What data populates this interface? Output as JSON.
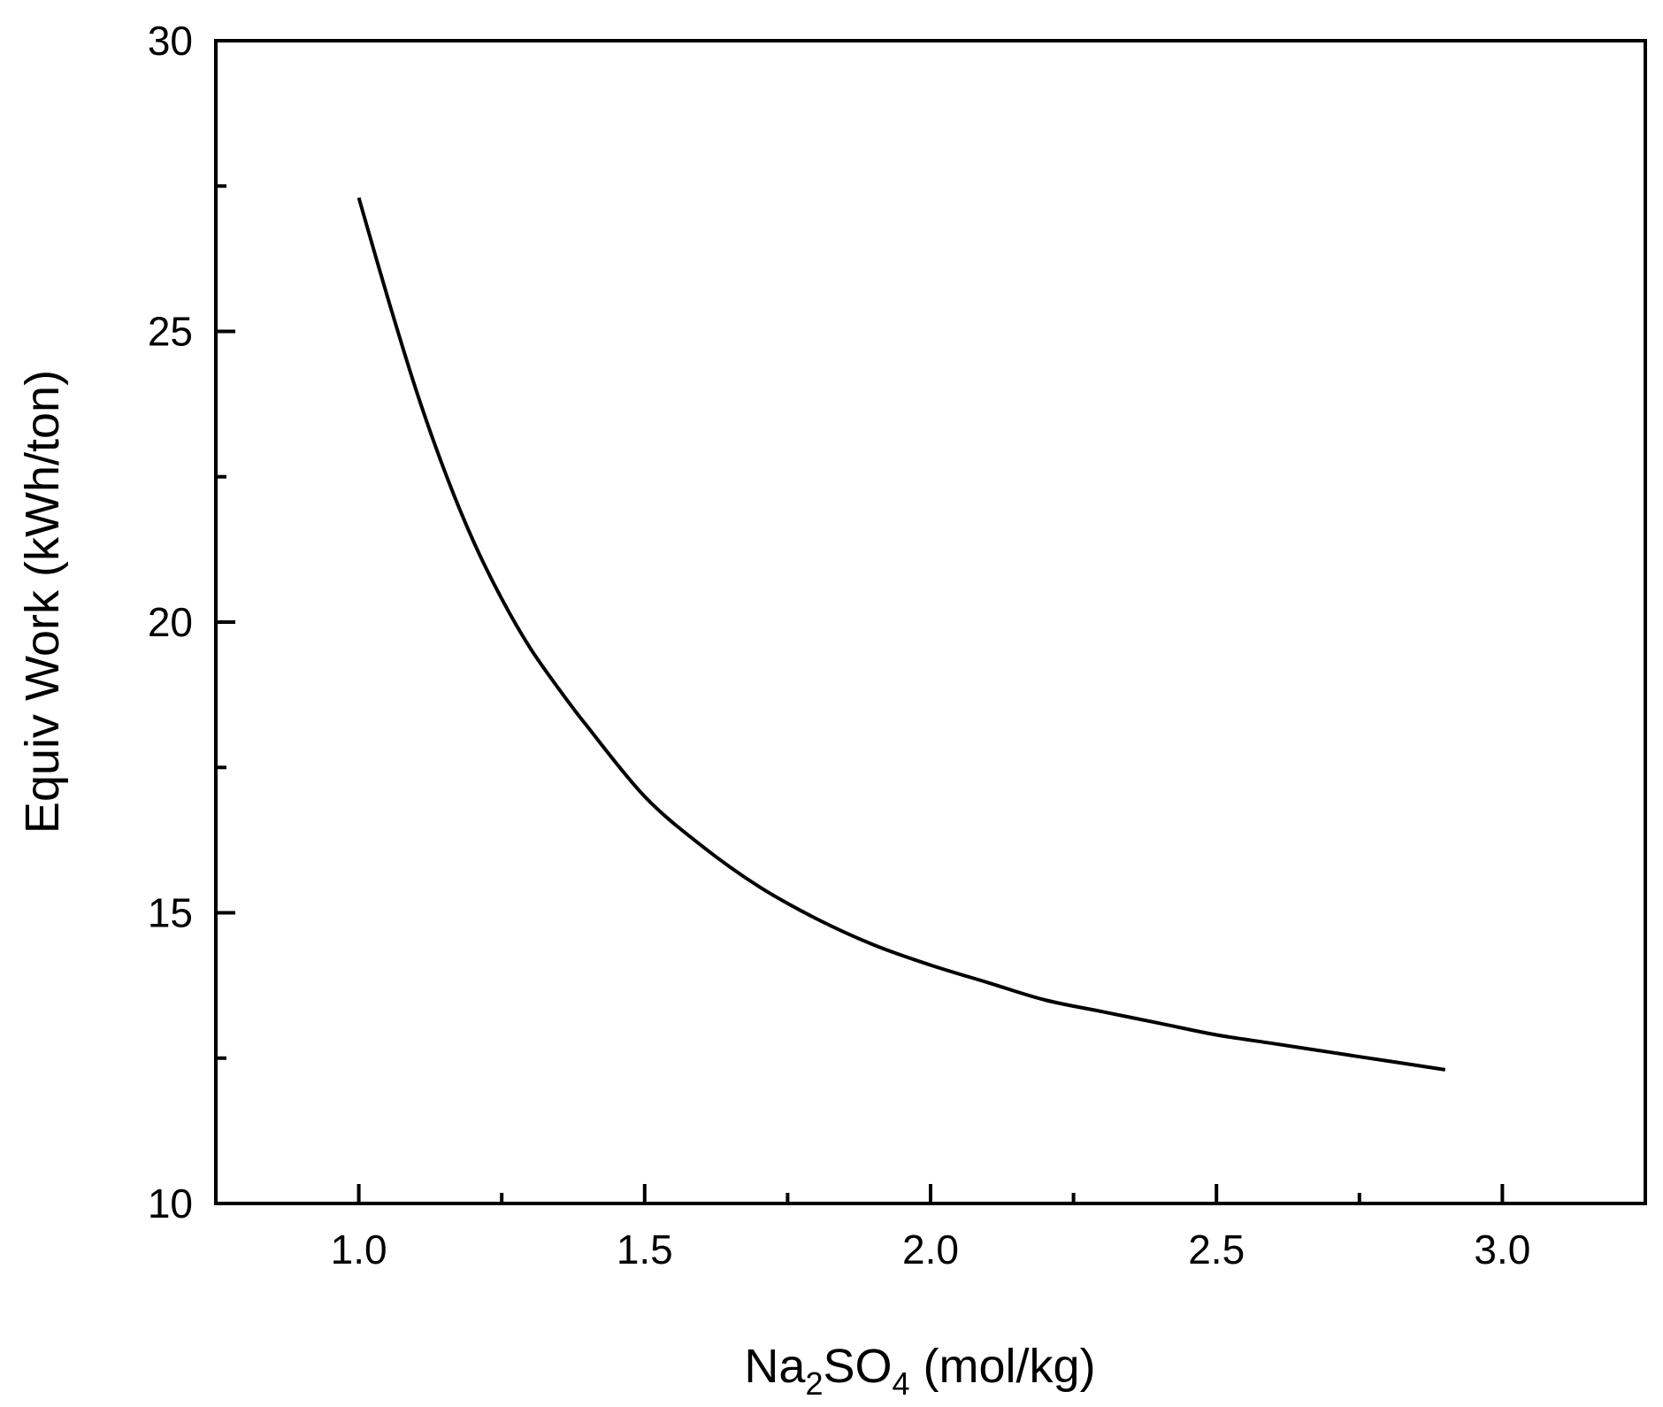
{
  "chart_data": {
    "type": "line",
    "title": "",
    "xlabel": {
      "base1": "Na",
      "sub1": "2",
      "base2": "SO",
      "sub2": "4",
      "rest": " (mol/kg)"
    },
    "ylabel": "Equiv Work (kWh/ton)",
    "xlim": [
      0.75,
      3.25
    ],
    "ylim": [
      10,
      30
    ],
    "xticks": [
      {
        "value": 1.0,
        "label": "1.0"
      },
      {
        "value": 1.5,
        "label": "1.5"
      },
      {
        "value": 2.0,
        "label": "2.0"
      },
      {
        "value": 2.5,
        "label": "2.5"
      },
      {
        "value": 3.0,
        "label": "3.0"
      }
    ],
    "xminor": [
      1.25,
      1.75,
      2.25,
      2.75
    ],
    "yticks": [
      {
        "value": 10,
        "label": "10"
      },
      {
        "value": 15,
        "label": "15"
      },
      {
        "value": 20,
        "label": "20"
      },
      {
        "value": 25,
        "label": "25"
      },
      {
        "value": 30,
        "label": "30"
      }
    ],
    "yminor": [
      12.5,
      17.5,
      22.5,
      27.5
    ],
    "grid": false,
    "line_color": "#000000",
    "series": [
      {
        "x": [
          1.0,
          1.05,
          1.1,
          1.15,
          1.2,
          1.25,
          1.3,
          1.35,
          1.4,
          1.5,
          1.6,
          1.7,
          1.8,
          1.9,
          2.0,
          2.1,
          2.2,
          2.3,
          2.4,
          2.5,
          2.6,
          2.7,
          2.8,
          2.9
        ],
        "y": [
          27.3,
          25.6,
          24.0,
          22.6,
          21.4,
          20.4,
          19.55,
          18.85,
          18.2,
          17.0,
          16.15,
          15.45,
          14.9,
          14.45,
          14.1,
          13.8,
          13.5,
          13.3,
          13.1,
          12.9,
          12.75,
          12.6,
          12.45,
          12.3
        ]
      }
    ]
  }
}
